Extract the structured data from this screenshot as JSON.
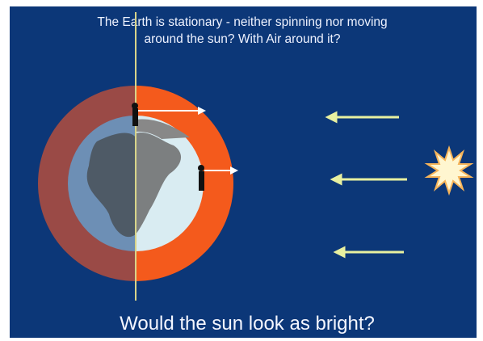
{
  "title": {
    "lines": [
      "The Earth is stationary - neither spinning nor moving",
      "around the sun? With Air around it?"
    ]
  },
  "caption": "Would the sun look as bright?"
}
